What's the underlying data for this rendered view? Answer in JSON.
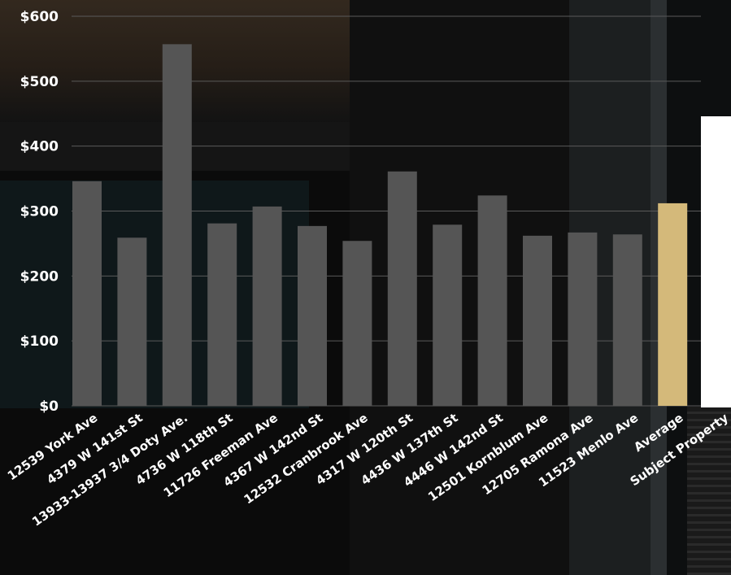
{
  "chart_data": {
    "type": "bar",
    "title": "",
    "xlabel": "",
    "ylabel": "",
    "ylim": [
      0,
      600
    ],
    "y_ticks": [
      {
        "value": 0,
        "label": "$0"
      },
      {
        "value": 100,
        "label": "$100"
      },
      {
        "value": 200,
        "label": "$200"
      },
      {
        "value": 300,
        "label": "$300"
      },
      {
        "value": 400,
        "label": "$400"
      },
      {
        "value": 500,
        "label": "$500"
      },
      {
        "value": 600,
        "label": "$600"
      }
    ],
    "grid": true,
    "legend": "none",
    "categories": [
      "12539 York Ave",
      "4379 W 141st St",
      "13933-13937 3/4 Doty Ave.",
      "4736 W 118th St",
      "11726 Freeman Ave",
      "4367 W 142nd St",
      "12532 Cranbrook Ave",
      "4317 W 120th St",
      "4436 W 137th St",
      "4446 W 142nd St",
      "12501 Kornblum Ave",
      "12705 Ramona Ave",
      "11523 Menlo Ave",
      "Average",
      "Subject Property"
    ],
    "values": [
      346,
      259,
      557,
      281,
      307,
      277,
      254,
      361,
      279,
      324,
      262,
      267,
      264,
      312,
      null
    ],
    "bar_colors": [
      "#555555",
      "#555555",
      "#555555",
      "#555555",
      "#555555",
      "#555555",
      "#555555",
      "#555555",
      "#555555",
      "#555555",
      "#555555",
      "#555555",
      "#555555",
      "#d4b97a",
      "#555555"
    ]
  },
  "colors": {
    "background": "#0b0b0b",
    "bar": "#555555",
    "highlight": "#d4b97a",
    "text": "#ffffff",
    "grid": "#5a5a5a",
    "panel": "#ffffff"
  }
}
